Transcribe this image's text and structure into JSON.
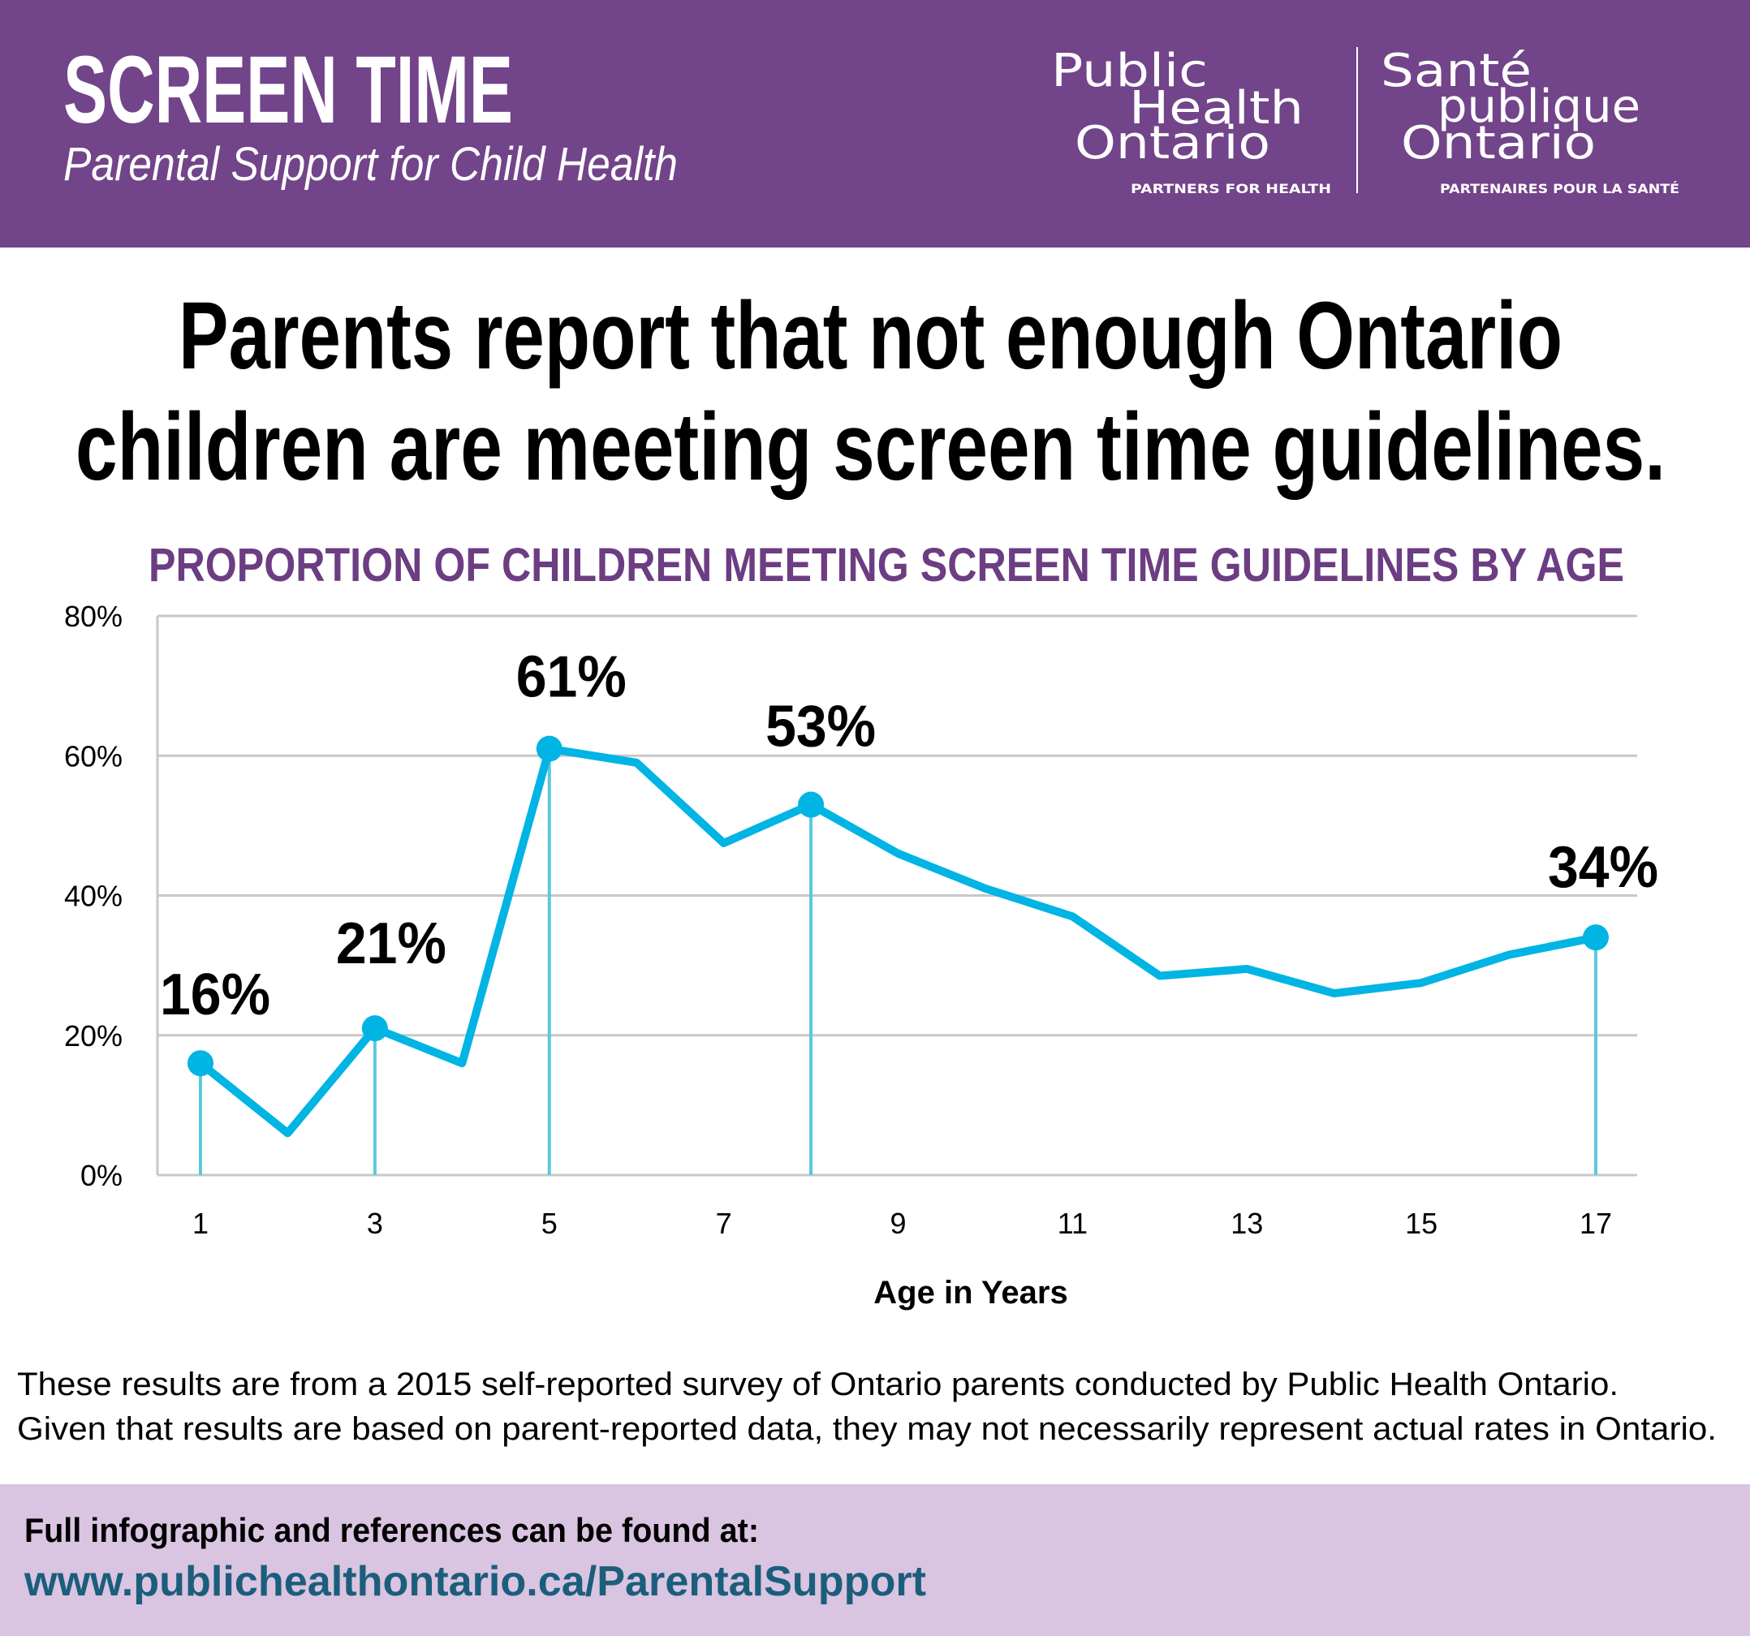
{
  "header": {
    "title": "SCREEN TIME",
    "subtitle": "Parental Support for Child Health",
    "logo_en": {
      "line1": "Public",
      "line2": "Health",
      "line3": "Ontario",
      "tagline": "PARTNERS FOR HEALTH"
    },
    "logo_fr": {
      "line1": "Santé",
      "line2": "publique",
      "line3": "Ontario",
      "tagline": "PARTENAIRES POUR LA SANTÉ"
    }
  },
  "headline": {
    "line1": "Parents report that not enough Ontario",
    "line2": "children are meeting screen time guidelines."
  },
  "footnote": {
    "line1": "These results are from a 2015 self-reported survey of Ontario parents conducted by Public Health Ontario.",
    "line2": "Given that results are based on parent-reported data, they may not necessarily represent actual rates in Ontario."
  },
  "footer": {
    "label": "Full infographic and references can be found at:",
    "url": "www.publichealthontario.ca/ParentalSupport"
  },
  "colors": {
    "header_bg": "#72448A",
    "subtitle": "#6C3D82",
    "line": "#00B4E4",
    "drop_line": "#5BC8E0",
    "footer_bg": "#D9C4E1",
    "url": "#1B5E7B"
  },
  "chart_data": {
    "type": "line",
    "title": "PROPORTION OF CHILDREN MEETING SCREEN TIME GUIDELINES BY AGE",
    "xlabel": "Age in Years",
    "ylabel": "",
    "x": [
      1,
      2,
      3,
      4,
      5,
      6,
      7,
      8,
      9,
      10,
      11,
      12,
      13,
      14,
      15,
      16,
      17
    ],
    "values": [
      16,
      6,
      21,
      16,
      61,
      59,
      47.5,
      53,
      46,
      41,
      37,
      28.5,
      29.5,
      26,
      27.5,
      31.5,
      34
    ],
    "ylim": [
      0,
      80
    ],
    "yticks": [
      "0%",
      "20%",
      "40%",
      "60%",
      "80%"
    ],
    "xticks": [
      "1",
      "3",
      "5",
      "7",
      "9",
      "11",
      "13",
      "15",
      "17"
    ],
    "grid": true,
    "highlights": [
      {
        "age": 1,
        "label": "16%"
      },
      {
        "age": 3,
        "label": "21%"
      },
      {
        "age": 5,
        "label": "61%"
      },
      {
        "age": 8,
        "label": "53%"
      },
      {
        "age": 17,
        "label": "34%"
      }
    ]
  }
}
